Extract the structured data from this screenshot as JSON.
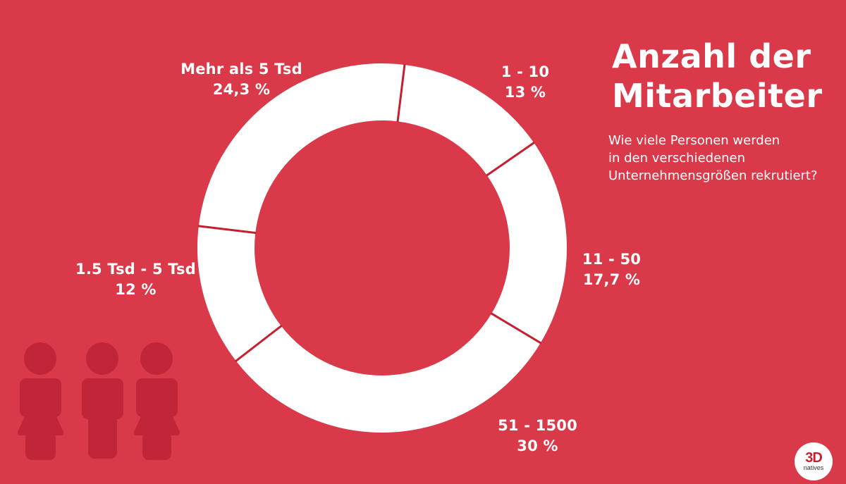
{
  "header": {
    "title_line1": "Anzahl der",
    "title_line2": "Mitarbeiter",
    "subtitle_lines": [
      "Wie viele Personen werden",
      "in den verschiedenen",
      "Unternehmensgrößen rekrutiert?"
    ]
  },
  "colors": {
    "background": "#da3949",
    "segment_fill": "#ffffff",
    "divider": "#c4202f",
    "figures": "#c12538"
  },
  "logo": {
    "main": "3D",
    "sub": "natives"
  },
  "labels": [
    {
      "category": "1 - 10",
      "value": "13 %"
    },
    {
      "category": "11 - 50",
      "value": "17,7 %"
    },
    {
      "category": "51 - 1500",
      "value": "30 %"
    },
    {
      "category": "1.5 Tsd - 5 Tsd",
      "value": "12 %"
    },
    {
      "category": "Mehr als 5 Tsd",
      "value": "24,3 %"
    }
  ],
  "chart_data": {
    "type": "pie",
    "subtype": "donut",
    "title": "Anzahl der Mitarbeiter",
    "subtitle": "Wie viele Personen werden in den verschiedenen Unternehmensgrößen rekrutiert?",
    "categories": [
      "1 - 10",
      "11 - 50",
      "51 - 1500",
      "1.5 Tsd - 5 Tsd",
      "Mehr als 5 Tsd"
    ],
    "values": [
      13,
      17.7,
      30,
      12,
      24.3
    ],
    "unit": "%",
    "start_angle_deg": 7,
    "direction": "clockwise",
    "legend": "none (direct labels)"
  }
}
